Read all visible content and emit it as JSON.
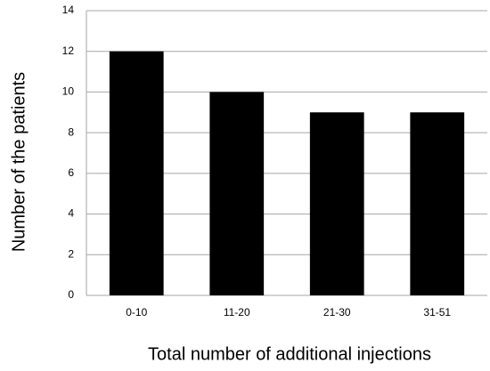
{
  "chart_data": {
    "type": "bar",
    "x_label": "Total number of additional injections",
    "y_label": "Number of the patients",
    "categories": [
      "0-10",
      "11-20",
      "21-30",
      "31-51"
    ],
    "values": [
      12,
      10,
      9,
      9
    ],
    "color": "#000000",
    "ylim": [
      0,
      14
    ],
    "yticks": [
      0,
      2,
      4,
      6,
      8,
      10,
      12,
      14
    ],
    "grid": true
  }
}
